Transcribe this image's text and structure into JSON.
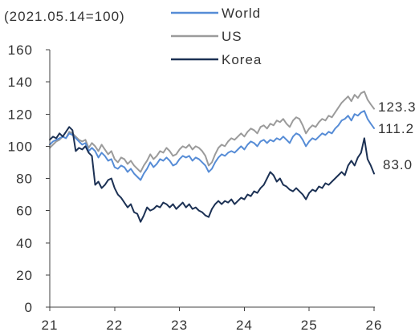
{
  "chart_data": {
    "type": "line",
    "subtitle": "(2021.05.14=100)",
    "xlabel": "",
    "ylabel": "",
    "xlim": [
      21,
      26
    ],
    "ylim": [
      0,
      160
    ],
    "x_ticks": [
      21,
      22,
      23,
      24,
      25,
      26
    ],
    "y_ticks": [
      0,
      20,
      40,
      60,
      80,
      100,
      120,
      140,
      160
    ],
    "grid": false,
    "legend": "top",
    "x": [
      21,
      21.05,
      21.1,
      21.15,
      21.2,
      21.25,
      21.3,
      21.35,
      21.4,
      21.45,
      21.5,
      21.55,
      21.6,
      21.65,
      21.7,
      21.75,
      21.8,
      21.85,
      21.9,
      21.95,
      22,
      22.05,
      22.1,
      22.15,
      22.2,
      22.25,
      22.3,
      22.35,
      22.4,
      22.45,
      22.5,
      22.55,
      22.6,
      22.65,
      22.7,
      22.75,
      22.8,
      22.85,
      22.9,
      22.95,
      23,
      23.05,
      23.1,
      23.15,
      23.2,
      23.25,
      23.3,
      23.35,
      23.4,
      23.45,
      23.5,
      23.55,
      23.6,
      23.65,
      23.7,
      23.75,
      23.8,
      23.85,
      23.9,
      23.95,
      24,
      24.05,
      24.1,
      24.15,
      24.2,
      24.25,
      24.3,
      24.35,
      24.4,
      24.45,
      24.5,
      24.55,
      24.6,
      24.65,
      24.7,
      24.75,
      24.8,
      24.85,
      24.9,
      24.95,
      25,
      25.05,
      25.1,
      25.15,
      25.2,
      25.25,
      25.3,
      25.35,
      25.4,
      25.45,
      25.5,
      25.55,
      25.6,
      25.65,
      25.7,
      25.75,
      25.8,
      25.85,
      25.9,
      25.95,
      26
    ],
    "series": [
      {
        "name": "World",
        "color": "#568cd6",
        "end_label": "111.2",
        "values": [
          101,
          103,
          104,
          105,
          106,
          105,
          108,
          107,
          105,
          103,
          101,
          102,
          97,
          99,
          97,
          93,
          96,
          94,
          91,
          92,
          87,
          86,
          88,
          87,
          84,
          86,
          83,
          81,
          79,
          83,
          86,
          90,
          87,
          89,
          92,
          91,
          93,
          91,
          88,
          89,
          92,
          94,
          93,
          94,
          91,
          93,
          92,
          90,
          88,
          84,
          86,
          90,
          93,
          95,
          94,
          96,
          97,
          96,
          98,
          100,
          98,
          101,
          103,
          102,
          100,
          103,
          104,
          102,
          104,
          103,
          105,
          104,
          106,
          104,
          102,
          106,
          108,
          107,
          104,
          100,
          103,
          105,
          104,
          106,
          108,
          107,
          109,
          108,
          111,
          113,
          116,
          117,
          119,
          116,
          120,
          119,
          121,
          122,
          117,
          114,
          111.2
        ]
      },
      {
        "name": "US",
        "color": "#9b9b9b",
        "end_label": "123.3",
        "values": [
          99,
          101,
          103,
          104,
          106,
          105,
          109,
          108,
          106,
          104,
          103,
          104,
          99,
          102,
          100,
          97,
          101,
          98,
          95,
          97,
          92,
          90,
          93,
          92,
          89,
          91,
          88,
          86,
          84,
          88,
          91,
          95,
          92,
          94,
          97,
          96,
          99,
          97,
          94,
          95,
          98,
          100,
          99,
          101,
          98,
          100,
          99,
          97,
          94,
          88,
          90,
          95,
          99,
          101,
          100,
          103,
          105,
          104,
          106,
          108,
          106,
          109,
          111,
          110,
          108,
          112,
          113,
          111,
          114,
          113,
          116,
          115,
          117,
          114,
          112,
          116,
          118,
          117,
          113,
          108,
          111,
          113,
          112,
          115,
          117,
          116,
          119,
          118,
          121,
          124,
          127,
          129,
          131,
          128,
          132,
          130,
          133,
          134,
          129,
          126,
          123.3
        ]
      },
      {
        "name": "Korea",
        "color": "#1c3154",
        "end_label": "83.0",
        "values": [
          104,
          106,
          105,
          108,
          106,
          109,
          112,
          110,
          97,
          99,
          98,
          100,
          96,
          94,
          76,
          78,
          74,
          76,
          79,
          80,
          74,
          70,
          68,
          65,
          62,
          64,
          59,
          58,
          53,
          57,
          62,
          60,
          61,
          63,
          62,
          65,
          64,
          62,
          64,
          61,
          63,
          65,
          62,
          64,
          61,
          62,
          60,
          59,
          57,
          56,
          61,
          64,
          66,
          64,
          66,
          65,
          67,
          64,
          66,
          68,
          67,
          70,
          69,
          72,
          71,
          74,
          76,
          80,
          84,
          82,
          78,
          80,
          76,
          75,
          73,
          72,
          74,
          72,
          70,
          67,
          71,
          73,
          72,
          75,
          74,
          77,
          76,
          78,
          80,
          82,
          84,
          82,
          88,
          91,
          88,
          93,
          96,
          105,
          92,
          88,
          83.0
        ]
      }
    ]
  }
}
